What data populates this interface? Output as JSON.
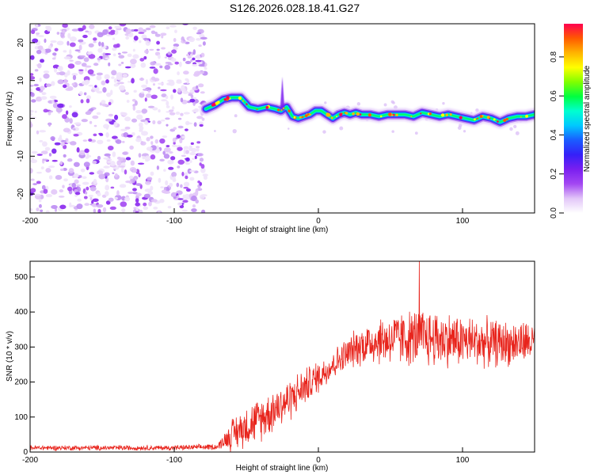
{
  "title": "S126.2026.028.18.41.G27",
  "chart_data": [
    {
      "type": "heatmap",
      "xlabel": "Height of straight line (km)",
      "ylabel": "Frequency (Hz)",
      "xlim": [
        -200,
        150
      ],
      "ylim": [
        -25,
        25
      ],
      "xticks": [
        -200,
        -100,
        0,
        100
      ],
      "yticks": [
        -20,
        -10,
        0,
        10,
        20
      ],
      "colorbar": {
        "label": "Normalized spectral amplitude",
        "range": [
          0,
          0.97
        ],
        "ticks": [
          0.0,
          0.2,
          0.4,
          0.6,
          0.8
        ],
        "colormap": [
          "#ffffff",
          "#e2c6f8",
          "#a347f2",
          "#7a1ff0",
          "#3520f8",
          "#1a5cff",
          "#00c8ff",
          "#00ffd0",
          "#00ff40",
          "#80ff00",
          "#ffff00",
          "#ffb400",
          "#ff5a00",
          "#ff0050"
        ]
      },
      "noise_region_x": [
        -200,
        -78
      ],
      "dominant_frequency_track": {
        "x": [
          -78,
          -72,
          -66,
          -60,
          -54,
          -48,
          -42,
          -36,
          -30,
          -26,
          -22,
          -18,
          -14,
          -10,
          -6,
          -2,
          2,
          6,
          10,
          14,
          18,
          22,
          26,
          30,
          36,
          42,
          48,
          54,
          60,
          66,
          72,
          78,
          84,
          90,
          96,
          102,
          108,
          114,
          120,
          126,
          132,
          138,
          144,
          150
        ],
        "hz": [
          2.5,
          3.5,
          5.0,
          5.5,
          5.5,
          3.0,
          2.5,
          3.0,
          2.5,
          2.0,
          3.0,
          0.5,
          0.0,
          0.5,
          1.0,
          2.0,
          2.0,
          1.0,
          0.0,
          1.0,
          1.5,
          1.0,
          1.5,
          1.0,
          1.0,
          0.5,
          1.0,
          1.0,
          1.0,
          0.5,
          1.5,
          1.0,
          0.5,
          1.0,
          0.5,
          0.0,
          -0.5,
          0.5,
          0.0,
          -1.0,
          0.0,
          0.5,
          0.5,
          1.0
        ]
      }
    },
    {
      "type": "line",
      "xlabel": "Height of straight line (km)",
      "ylabel": "SNR (10 * v/v)",
      "xlim": [
        -200,
        150
      ],
      "ylim": [
        0,
        545
      ],
      "xticks": [
        -200,
        -100,
        0,
        100
      ],
      "yticks": [
        0,
        100,
        200,
        300,
        400,
        500
      ],
      "series": [
        {
          "name": "SNR",
          "color": "#e8241c",
          "envelope": {
            "x": [
              -200,
              -150,
              -100,
              -70,
              -65,
              -60,
              -50,
              -40,
              -30,
              -20,
              -10,
              0,
              10,
              20,
              25,
              30,
              40,
              50,
              60,
              70,
              80,
              90,
              100,
              110,
              120,
              130,
              140,
              150
            ],
            "mean": [
              12,
              12,
              12,
              15,
              35,
              50,
              75,
              95,
              125,
              150,
              185,
              215,
              250,
              280,
              295,
              305,
              318,
              322,
              325,
              328,
              325,
              322,
              318,
              315,
              312,
              310,
              312,
              315
            ],
            "spread": [
              7,
              7,
              7,
              8,
              22,
              45,
              55,
              60,
              60,
              58,
              50,
              45,
              40,
              45,
              50,
              55,
              65,
              70,
              75,
              80,
              80,
              75,
              70,
              68,
              65,
              62,
              60,
              55
            ]
          },
          "peak": {
            "x": 70,
            "y": 545
          }
        }
      ]
    }
  ]
}
